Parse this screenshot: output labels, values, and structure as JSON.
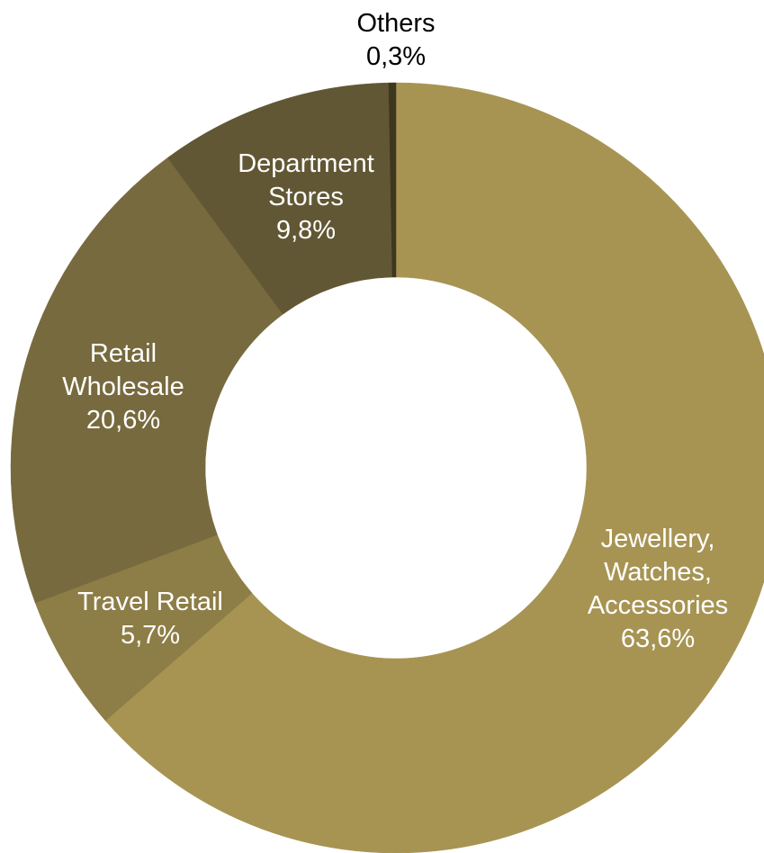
{
  "chart_data": {
    "type": "pie",
    "donut": true,
    "title": "",
    "segments": [
      {
        "name": "Jewellery, Watches, Accessories",
        "label_lines": [
          "Jewellery,",
          "Watches,",
          "Accessories"
        ],
        "value": 63.6,
        "value_label": "63,6%",
        "color": "#A79453",
        "label_color": "#ffffff"
      },
      {
        "name": "Travel Retail",
        "label_lines": [
          "Travel Retail"
        ],
        "value": 5.7,
        "value_label": "5,7%",
        "color": "#8D7D46",
        "label_color": "#ffffff"
      },
      {
        "name": "Retail Wholesale",
        "label_lines": [
          "Retail",
          "Wholesale"
        ],
        "value": 20.6,
        "value_label": "20,6%",
        "color": "#776A3E",
        "label_color": "#ffffff"
      },
      {
        "name": "Department Stores",
        "label_lines": [
          "Department",
          "Stores"
        ],
        "value": 9.8,
        "value_label": "9,8%",
        "color": "#625734",
        "label_color": "#ffffff"
      },
      {
        "name": "Others",
        "label_lines": [
          "Others"
        ],
        "value": 0.3,
        "value_label": "0,3%",
        "color": "#3E3720",
        "label_color": "#000000"
      }
    ]
  }
}
